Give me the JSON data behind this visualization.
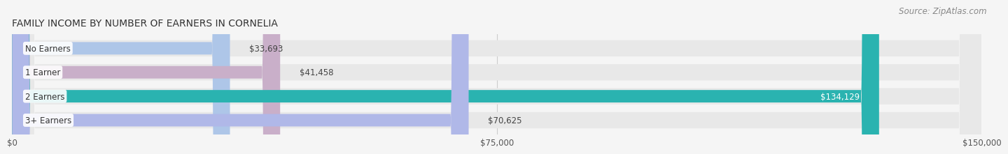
{
  "title": "FAMILY INCOME BY NUMBER OF EARNERS IN CORNELIA",
  "source_text": "Source: ZipAtlas.com",
  "categories": [
    "No Earners",
    "1 Earner",
    "2 Earners",
    "3+ Earners"
  ],
  "values": [
    33693,
    41458,
    134129,
    70625
  ],
  "labels": [
    "$33,693",
    "$41,458",
    "$134,129",
    "$70,625"
  ],
  "bar_colors": [
    "#aec6e8",
    "#c9afc9",
    "#2ab3b0",
    "#b0b8e8"
  ],
  "bar_track_color": "#e8e8e8",
  "xmax": 150000,
  "xticks": [
    0,
    75000,
    150000
  ],
  "xticklabels": [
    "$0",
    "$75,000",
    "$150,000"
  ],
  "background_color": "#f5f5f5",
  "title_fontsize": 10,
  "source_fontsize": 8.5,
  "label_fontsize": 8.5,
  "tick_fontsize": 8.5,
  "category_fontsize": 8.5
}
